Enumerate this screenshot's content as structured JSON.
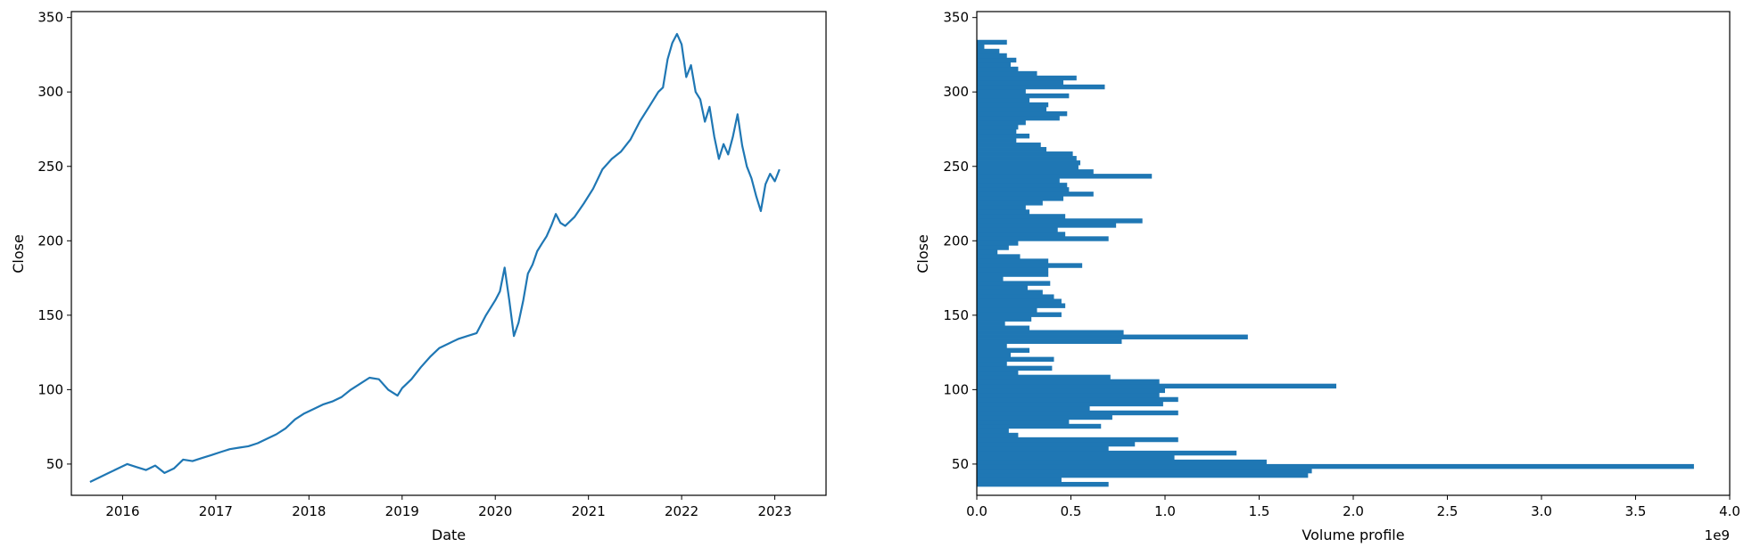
{
  "chart_data": [
    {
      "type": "line",
      "xlabel": "Date",
      "ylabel": "Close",
      "xlim": [
        2015.45,
        2023.55
      ],
      "ylim": [
        29,
        354
      ],
      "xticks": [
        {
          "value": 2016,
          "label": "2016"
        },
        {
          "value": 2017,
          "label": "2017"
        },
        {
          "value": 2018,
          "label": "2018"
        },
        {
          "value": 2019,
          "label": "2019"
        },
        {
          "value": 2020,
          "label": "2020"
        },
        {
          "value": 2021,
          "label": "2021"
        },
        {
          "value": 2022,
          "label": "2022"
        },
        {
          "value": 2023,
          "label": "2023"
        }
      ],
      "yticks": [
        {
          "value": 50,
          "label": "50"
        },
        {
          "value": 100,
          "label": "100"
        },
        {
          "value": 150,
          "label": "150"
        },
        {
          "value": 200,
          "label": "200"
        },
        {
          "value": 250,
          "label": "250"
        },
        {
          "value": 300,
          "label": "300"
        },
        {
          "value": 350,
          "label": "350"
        }
      ],
      "grid": false,
      "color": "#1f77b4",
      "series": [
        {
          "x": [
            2015.65,
            2015.75,
            2015.85,
            2015.95,
            2016.05,
            2016.15,
            2016.25,
            2016.35,
            2016.45,
            2016.55,
            2016.65,
            2016.75,
            2016.85,
            2016.95,
            2017.05,
            2017.15,
            2017.25,
            2017.35,
            2017.45,
            2017.55,
            2017.65,
            2017.75,
            2017.85,
            2017.95,
            2018.05,
            2018.15,
            2018.25,
            2018.35,
            2018.45,
            2018.55,
            2018.65,
            2018.75,
            2018.85,
            2018.95,
            2019.0,
            2019.1,
            2019.2,
            2019.3,
            2019.4,
            2019.5,
            2019.6,
            2019.7,
            2019.8,
            2019.9,
            2020.0,
            2020.05,
            2020.1,
            2020.15,
            2020.2,
            2020.25,
            2020.3,
            2020.35,
            2020.4,
            2020.45,
            2020.5,
            2020.55,
            2020.6,
            2020.65,
            2020.7,
            2020.75,
            2020.85,
            2020.95,
            2021.05,
            2021.15,
            2021.25,
            2021.35,
            2021.45,
            2021.55,
            2021.65,
            2021.75,
            2021.8,
            2021.85,
            2021.9,
            2021.95,
            2022.0,
            2022.05,
            2022.1,
            2022.15,
            2022.2,
            2022.25,
            2022.3,
            2022.35,
            2022.4,
            2022.45,
            2022.5,
            2022.55,
            2022.6,
            2022.65,
            2022.7,
            2022.75,
            2022.8,
            2022.85,
            2022.9,
            2022.95,
            2023.0,
            2023.05
          ],
          "y": [
            38,
            41,
            44,
            47,
            50,
            48,
            46,
            49,
            44,
            47,
            53,
            52,
            54,
            56,
            58,
            60,
            61,
            62,
            64,
            67,
            70,
            74,
            80,
            84,
            87,
            90,
            92,
            95,
            100,
            104,
            108,
            107,
            100,
            96,
            101,
            107,
            115,
            122,
            128,
            131,
            134,
            136,
            138,
            150,
            160,
            166,
            182,
            160,
            136,
            145,
            160,
            178,
            184,
            193,
            198,
            203,
            210,
            218,
            212,
            210,
            216,
            225,
            235,
            248,
            255,
            260,
            268,
            280,
            290,
            300,
            303,
            322,
            333,
            339,
            332,
            310,
            318,
            300,
            295,
            280,
            290,
            270,
            255,
            265,
            258,
            270,
            285,
            264,
            250,
            242,
            230,
            220,
            238,
            245,
            240,
            248
          ]
        }
      ]
    },
    {
      "type": "bar",
      "orientation": "horizontal",
      "xlabel": "Volume profile",
      "ylabel": "Close",
      "offset_label": "1e9",
      "xlim": [
        0,
        4.0
      ],
      "ylim": [
        29,
        354
      ],
      "xticks": [
        {
          "value": 0,
          "label": "0.0"
        },
        {
          "value": 0.5,
          "label": "0.5"
        },
        {
          "value": 1.0,
          "label": "1.0"
        },
        {
          "value": 1.5,
          "label": "1.5"
        },
        {
          "value": 2.0,
          "label": "2.0"
        },
        {
          "value": 2.5,
          "label": "2.5"
        },
        {
          "value": 3.0,
          "label": "3.0"
        },
        {
          "value": 3.5,
          "label": "3.5"
        },
        {
          "value": 4.0,
          "label": "4.0"
        }
      ],
      "yticks": [
        {
          "value": 50,
          "label": "50"
        },
        {
          "value": 100,
          "label": "100"
        },
        {
          "value": 150,
          "label": "150"
        },
        {
          "value": 200,
          "label": "200"
        },
        {
          "value": 250,
          "label": "250"
        },
        {
          "value": 300,
          "label": "300"
        },
        {
          "value": 350,
          "label": "350"
        }
      ],
      "grid": false,
      "color": "#1f77b4",
      "bin_width": 3,
      "bins": [
        36.5,
        39.5,
        42.5,
        45.5,
        48.5,
        51.5,
        54.5,
        57.5,
        60.5,
        63.5,
        66.5,
        69.5,
        72.5,
        75.5,
        78.5,
        81.5,
        84.5,
        87.5,
        90.5,
        93.5,
        96.5,
        99.5,
        102.5,
        105.5,
        108.5,
        111.5,
        114.5,
        117.5,
        120.5,
        123.5,
        126.5,
        129.5,
        132.5,
        135.5,
        138.5,
        141.5,
        144.5,
        147.5,
        150.5,
        153.5,
        156.5,
        159.5,
        162.5,
        165.5,
        168.5,
        171.5,
        174.5,
        177.5,
        180.5,
        183.5,
        186.5,
        189.5,
        192.5,
        195.5,
        198.5,
        201.5,
        204.5,
        207.5,
        210.5,
        213.5,
        216.5,
        219.5,
        222.5,
        225.5,
        228.5,
        231.5,
        234.5,
        237.5,
        240.5,
        243.5,
        246.5,
        249.5,
        252.5,
        255.5,
        258.5,
        261.5,
        264.5,
        267.5,
        270.5,
        273.5,
        276.5,
        279.5,
        282.5,
        285.5,
        288.5,
        291.5,
        294.5,
        297.5,
        300.5,
        303.5,
        306.5,
        309.5,
        312.5,
        315.5,
        318.5,
        321.5,
        324.5,
        327.5,
        330.5,
        333.5
      ],
      "values": [
        0.7,
        0.45,
        1.76,
        1.78,
        3.81,
        1.54,
        1.05,
        1.38,
        0.7,
        0.84,
        1.07,
        0.22,
        0.17,
        0.66,
        0.49,
        0.72,
        1.07,
        0.6,
        0.99,
        1.07,
        0.97,
        1.0,
        1.91,
        0.97,
        0.71,
        0.22,
        0.4,
        0.16,
        0.41,
        0.18,
        0.28,
        0.16,
        0.77,
        1.44,
        0.78,
        0.28,
        0.15,
        0.29,
        0.45,
        0.32,
        0.47,
        0.45,
        0.41,
        0.35,
        0.27,
        0.39,
        0.14,
        0.38,
        0.38,
        0.56,
        0.38,
        0.23,
        0.11,
        0.17,
        0.22,
        0.7,
        0.47,
        0.43,
        0.74,
        0.88,
        0.47,
        0.28,
        0.26,
        0.35,
        0.46,
        0.62,
        0.49,
        0.48,
        0.44,
        0.93,
        0.62,
        0.54,
        0.55,
        0.53,
        0.51,
        0.37,
        0.34,
        0.21,
        0.28,
        0.21,
        0.22,
        0.26,
        0.44,
        0.48,
        0.37,
        0.38,
        0.28,
        0.49,
        0.26,
        0.68,
        0.46,
        0.53,
        0.32,
        0.22,
        0.18,
        0.21,
        0.16,
        0.12,
        0.04,
        0.16
      ]
    }
  ]
}
